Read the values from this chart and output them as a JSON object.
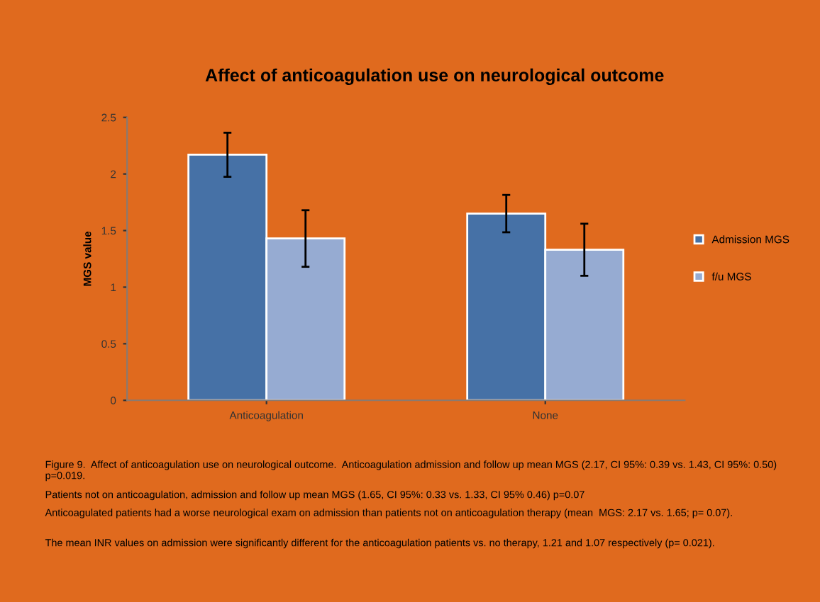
{
  "chart_data": {
    "type": "bar",
    "title": "Affect of anticoagulation use on neurological outcome",
    "ylabel": "MGS value",
    "categories": [
      "Anticoagulation",
      "None"
    ],
    "series": [
      {
        "name": "Admission MGS",
        "color": "#4671a6",
        "values": [
          2.17,
          1.65
        ],
        "errors": [
          0.195,
          0.165
        ]
      },
      {
        "name": "f/u MGS",
        "color": "#96abd2",
        "values": [
          1.43,
          1.33
        ],
        "errors": [
          0.25,
          0.23
        ]
      }
    ],
    "ylim": [
      0,
      2.5
    ],
    "yticks": [
      0,
      0.5,
      1,
      1.5,
      2,
      2.5
    ],
    "grid": false,
    "legend": "right",
    "annotations": [
      "Figure 9.  Affect of anticoagulation use on neurological outcome.  Anticoagulation admission and follow up mean MGS (2.17, CI 95%: 0.39 vs. 1.43, CI 95%: 0.50) p=0.019.",
      "Patients not on anticoagulation, admission and follow up mean MGS (1.65, CI 95%: 0.33 vs. 1.33, CI 95% 0.46) p=0.07",
      "Anticoagulated patients had a worse neurological exam on admission than patients not on anticoagulation therapy (mean  MGS: 2.17 vs. 1.65; p= 0.07).",
      "The mean INR values on admission were significantly different for the anticoagulation patients vs. no therapy, 1.21 and 1.07 respectively (p= 0.021)."
    ]
  }
}
